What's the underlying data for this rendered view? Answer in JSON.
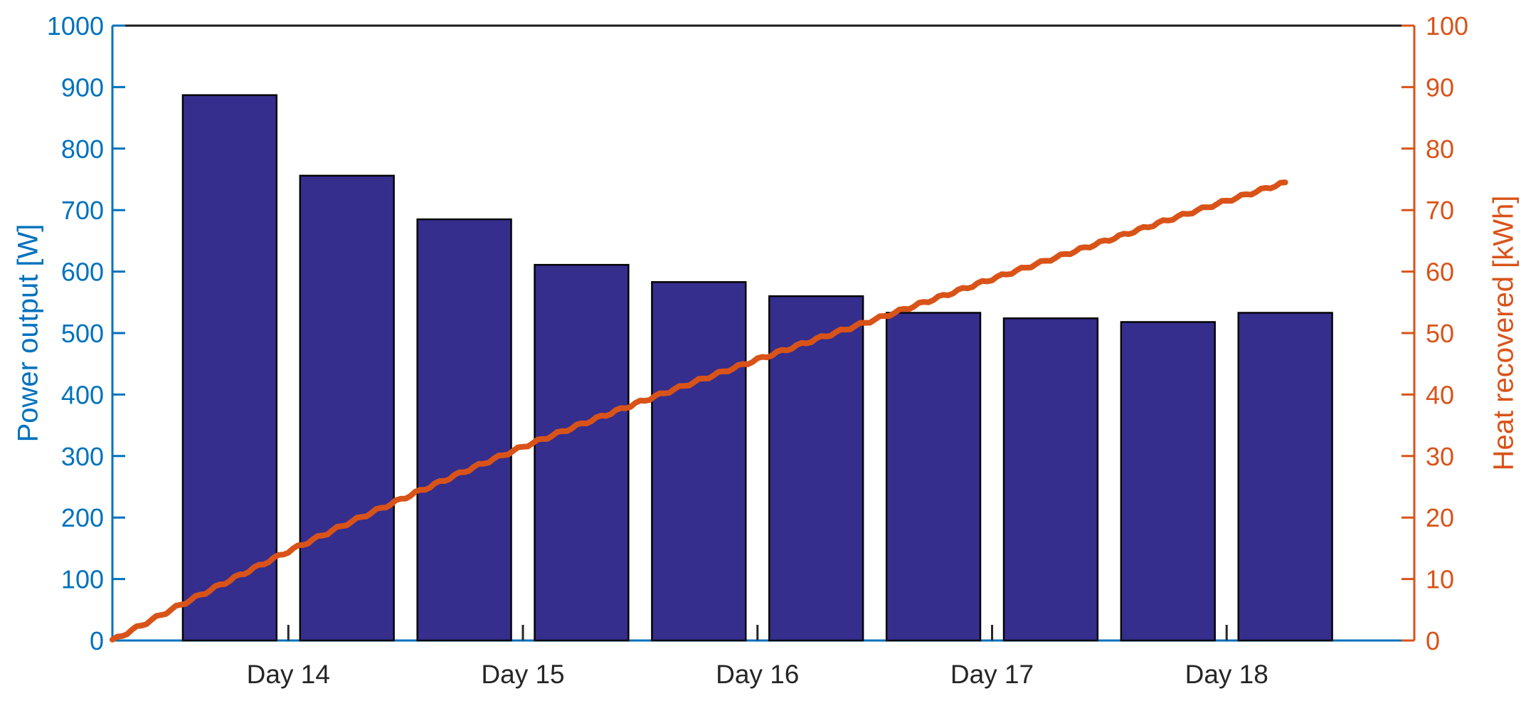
{
  "chart_data": {
    "type": "combo",
    "title": "",
    "x_axis": {
      "tick_labels": [
        "Day 14",
        "Day 15",
        "Day 16",
        "Day 17",
        "Day 18"
      ],
      "tick_positions": [
        14,
        15,
        16,
        17,
        18
      ],
      "range": [
        13.25,
        18.8
      ],
      "color": "#262626"
    },
    "left_axis": {
      "label": "Power output [W]",
      "color": "#0072BD",
      "range": [
        0,
        1000
      ],
      "ticks": [
        0,
        100,
        200,
        300,
        400,
        500,
        600,
        700,
        800,
        900,
        1000
      ]
    },
    "right_axis": {
      "label": "Heat recovered [kWh]",
      "color": "#D95319",
      "range": [
        0,
        100
      ],
      "ticks": [
        0,
        10,
        20,
        30,
        40,
        50,
        60,
        70,
        80,
        90,
        100
      ]
    },
    "grid": "off",
    "legend": "none",
    "series": [
      {
        "name": "Power output",
        "type": "bar",
        "axis": "left",
        "fill_color": "#352E8C",
        "edge_color": "#000000",
        "bar_width_days": 0.4,
        "x": [
          13.75,
          14.25,
          14.75,
          15.25,
          15.75,
          16.25,
          16.75,
          17.25,
          17.75,
          18.25
        ],
        "values": [
          887,
          756,
          685,
          611,
          583,
          560,
          533,
          524,
          518,
          533
        ]
      },
      {
        "name": "Heat recovered",
        "type": "line",
        "axis": "right",
        "color": "#D95319",
        "points": [
          [
            13.25,
            0
          ],
          [
            13.5,
            5.0
          ],
          [
            13.75,
            9.8
          ],
          [
            14.0,
            14.5
          ],
          [
            14.25,
            19.0
          ],
          [
            14.5,
            23.3
          ],
          [
            14.75,
            27.5
          ],
          [
            15.0,
            31.5
          ],
          [
            15.25,
            35.2
          ],
          [
            15.5,
            38.8
          ],
          [
            15.75,
            42.3
          ],
          [
            16.0,
            45.7
          ],
          [
            16.25,
            49.0
          ],
          [
            16.5,
            52.2
          ],
          [
            16.75,
            55.5
          ],
          [
            17.0,
            58.8
          ],
          [
            17.25,
            62.0
          ],
          [
            17.5,
            65.2
          ],
          [
            17.75,
            68.4
          ],
          [
            18.0,
            71.5
          ],
          [
            18.25,
            74.5
          ]
        ]
      }
    ]
  }
}
